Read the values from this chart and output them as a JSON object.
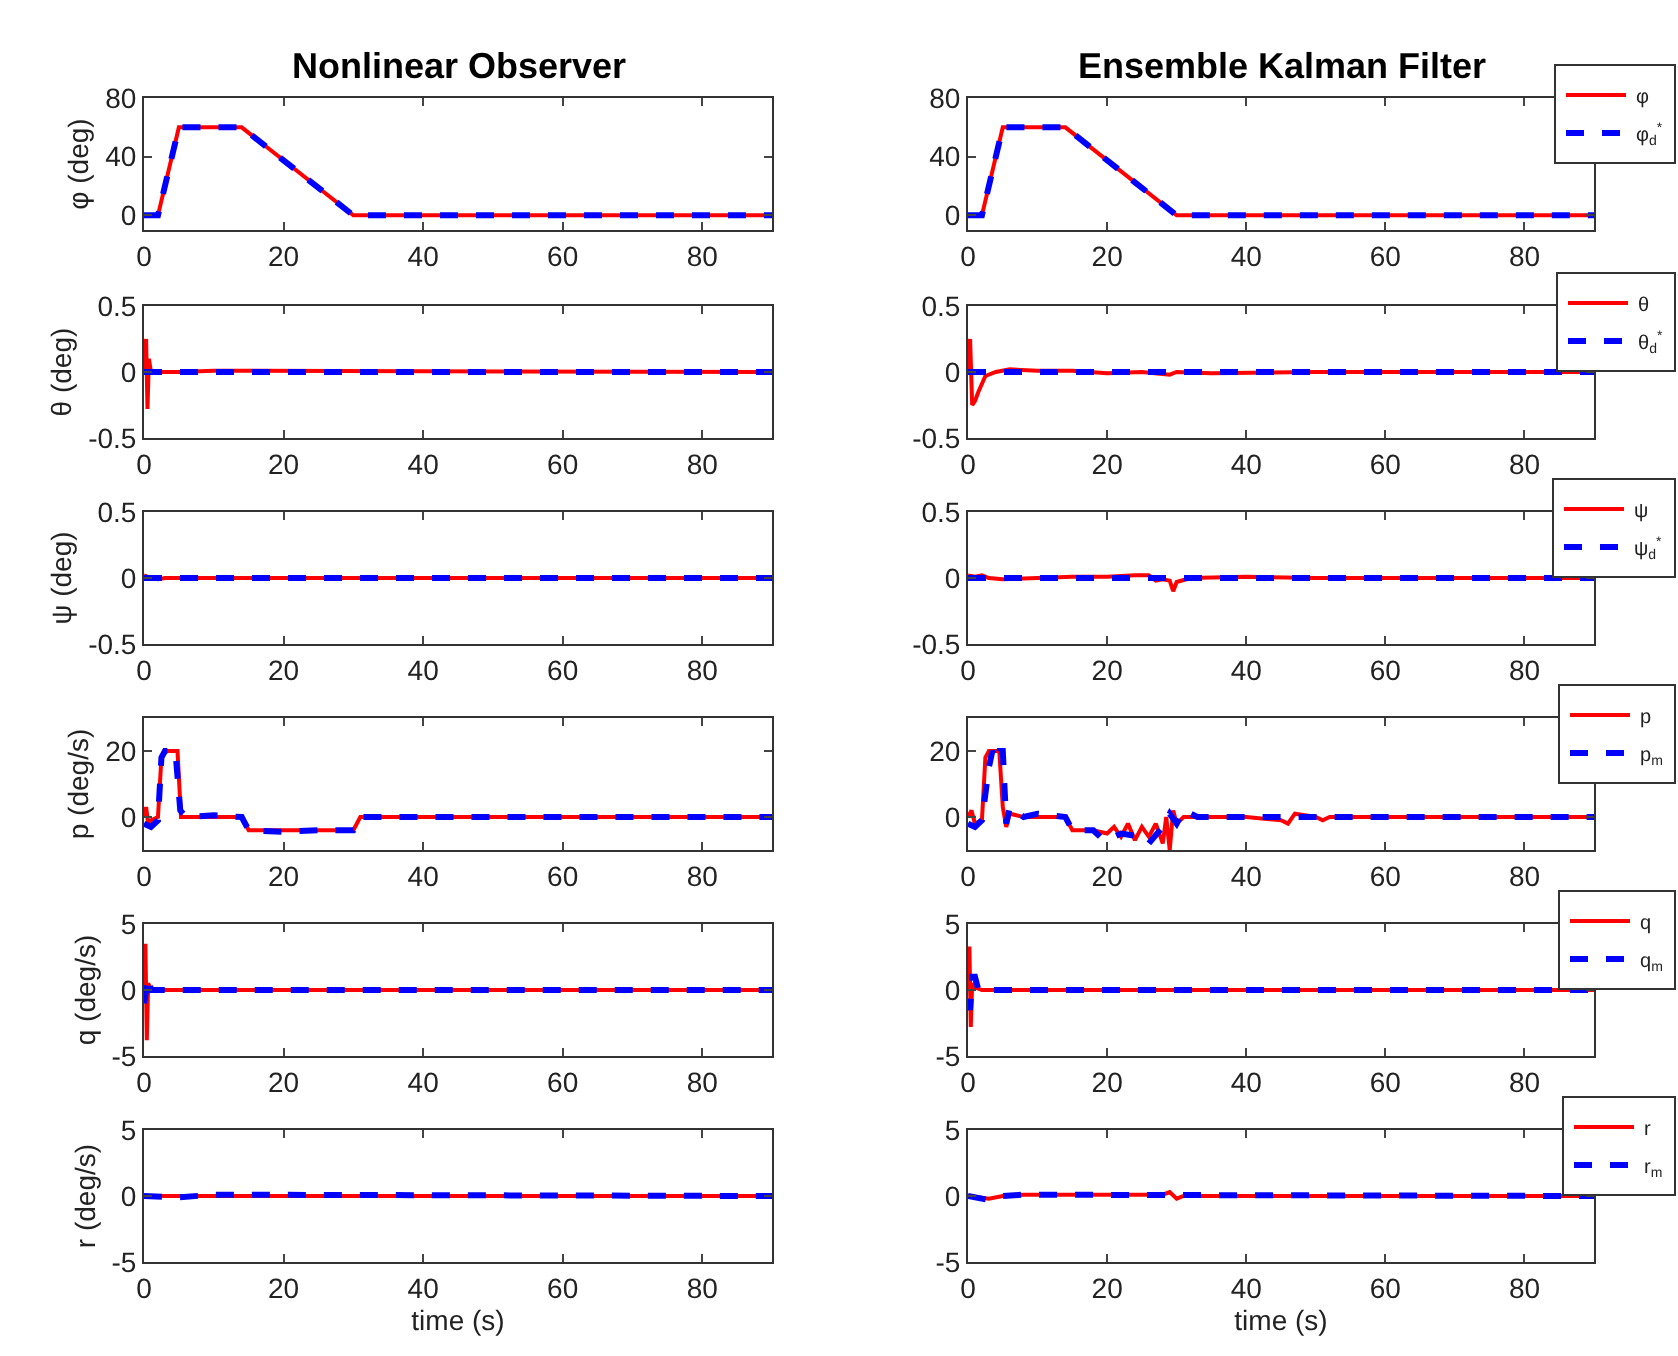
{
  "chart_data": [
    {
      "type": "line",
      "title": "Nonlinear Observer",
      "ylabel": "φ (deg)",
      "xlim": [
        0,
        90
      ],
      "xticks": [
        0,
        20,
        40,
        60,
        80
      ],
      "ylim": [
        -10,
        80
      ],
      "yticks": [
        0,
        40,
        80
      ],
      "series": [
        {
          "color": "#ff0000",
          "line_style": "solid",
          "x": [
            0,
            2,
            5,
            14,
            30,
            90
          ],
          "values": [
            0,
            0,
            60,
            60,
            0,
            0
          ]
        },
        {
          "color": "#0000ff",
          "line_style": "dashed",
          "x": [
            0,
            2,
            5,
            14,
            30,
            90
          ],
          "values": [
            0,
            0,
            60,
            60,
            0,
            0
          ]
        }
      ]
    },
    {
      "type": "line",
      "title": "Ensemble Kalman Filter",
      "xlim": [
        0,
        90
      ],
      "xticks": [
        0,
        20,
        40,
        60,
        80
      ],
      "ylim": [
        -10,
        80
      ],
      "yticks": [
        0,
        40,
        80
      ],
      "legend": "top right",
      "series": [
        {
          "name": "φ",
          "color": "#ff0000",
          "line_style": "solid",
          "x": [
            0,
            2,
            5,
            14,
            30,
            90
          ],
          "values": [
            0,
            0,
            60,
            60,
            0,
            0
          ]
        },
        {
          "name": "φ$_{d}$$^{*}$",
          "color": "#0000ff",
          "line_style": "dashed",
          "x": [
            0,
            2,
            5,
            14,
            30,
            90
          ],
          "values": [
            0,
            0,
            60,
            60,
            0,
            0
          ]
        }
      ]
    },
    {
      "type": "line",
      "ylabel": "θ (deg)",
      "xlim": [
        0,
        90
      ],
      "xticks": [
        0,
        20,
        40,
        60,
        80
      ],
      "ylim": [
        -0.5,
        0.5
      ],
      "yticks": [
        -0.5,
        0,
        0.5
      ],
      "series": [
        {
          "color": "#ff0000",
          "line_style": "solid",
          "x": [
            0,
            0.3,
            0.5,
            0.7,
            1,
            5,
            10,
            90
          ],
          "values": [
            0,
            0.25,
            -0.28,
            0.1,
            0,
            0,
            0.01,
            0
          ]
        },
        {
          "color": "#0000ff",
          "line_style": "dashed",
          "x": [
            0,
            90
          ],
          "values": [
            0,
            0
          ]
        }
      ]
    },
    {
      "type": "line",
      "xlim": [
        0,
        90
      ],
      "xticks": [
        0,
        20,
        40,
        60,
        80
      ],
      "ylim": [
        -0.5,
        0.5
      ],
      "yticks": [
        -0.5,
        0,
        0.5
      ],
      "legend": "top right",
      "series": [
        {
          "name": "θ",
          "color": "#ff0000",
          "line_style": "solid",
          "x": [
            0,
            0.3,
            0.6,
            1,
            1.5,
            2.5,
            4,
            6,
            10,
            15,
            20,
            25,
            29,
            30,
            35,
            50,
            60,
            90
          ],
          "values": [
            0,
            0.25,
            -0.25,
            -0.22,
            -0.15,
            -0.03,
            0,
            0.02,
            0.01,
            0.01,
            -0.01,
            0,
            -0.02,
            0,
            -0.01,
            0,
            0,
            0
          ]
        },
        {
          "name": "θ$_{d}$$^{*}$",
          "color": "#0000ff",
          "line_style": "dashed",
          "x": [
            0,
            90
          ],
          "values": [
            0,
            0
          ]
        }
      ]
    },
    {
      "type": "line",
      "ylabel": "ψ (deg)",
      "xlim": [
        0,
        90
      ],
      "xticks": [
        0,
        20,
        40,
        60,
        80
      ],
      "ylim": [
        -0.5,
        0.5
      ],
      "yticks": [
        -0.5,
        0,
        0.5
      ],
      "series": [
        {
          "color": "#ff0000",
          "line_style": "solid",
          "x": [
            0,
            1,
            2,
            3,
            5,
            10,
            30,
            90
          ],
          "values": [
            0.02,
            0,
            -0.01,
            0,
            0,
            0,
            0,
            0
          ]
        },
        {
          "color": "#0000ff",
          "line_style": "dashed",
          "x": [
            0,
            90
          ],
          "values": [
            0,
            0
          ]
        }
      ]
    },
    {
      "type": "line",
      "xlim": [
        0,
        90
      ],
      "xticks": [
        0,
        20,
        40,
        60,
        80
      ],
      "ylim": [
        -0.5,
        0.5
      ],
      "yticks": [
        -0.5,
        0,
        0.5
      ],
      "legend": "top right",
      "series": [
        {
          "name": "ψ",
          "color": "#ff0000",
          "line_style": "solid",
          "x": [
            0,
            1,
            2,
            3,
            5,
            10,
            15,
            20,
            24,
            26,
            27,
            28,
            29,
            29.5,
            30,
            32,
            40,
            50,
            90
          ],
          "values": [
            0.02,
            0.01,
            0.02,
            0,
            -0.01,
            0,
            0.01,
            0.01,
            0.02,
            0.02,
            -0.02,
            -0.01,
            -0.02,
            -0.1,
            -0.03,
            0,
            0.01,
            0,
            0
          ]
        },
        {
          "name": "ψ$_{d}$$^{*}$",
          "color": "#0000ff",
          "line_style": "dashed",
          "x": [
            0,
            90
          ],
          "values": [
            0,
            0
          ]
        }
      ]
    },
    {
      "type": "line",
      "ylabel": "p (deg/s)",
      "xlim": [
        0,
        90
      ],
      "xticks": [
        0,
        20,
        40,
        60,
        80
      ],
      "ylim": [
        -10,
        30
      ],
      "yticks": [
        0,
        20
      ],
      "series": [
        {
          "color": "#ff0000",
          "line_style": "solid",
          "x": [
            0,
            0.3,
            0.6,
            1,
            2,
            2.5,
            3,
            4.8,
            5.3,
            6,
            14,
            15,
            30,
            31,
            90
          ],
          "values": [
            0,
            3,
            -2,
            -1,
            0,
            18,
            20,
            20,
            0,
            0,
            0,
            -4,
            -4,
            0,
            0
          ]
        },
        {
          "color": "#0000ff",
          "line_style": "dashed",
          "x": [
            0,
            1,
            2,
            2.5,
            3,
            4.5,
            5.2,
            6,
            10,
            14,
            15,
            20,
            25,
            30,
            31,
            40,
            90
          ],
          "values": [
            -2,
            -3,
            -1,
            18,
            20,
            20,
            2,
            0,
            0.5,
            0,
            -4,
            -4.5,
            -4,
            -4,
            0,
            0,
            0
          ]
        }
      ]
    },
    {
      "type": "line",
      "xlim": [
        0,
        90
      ],
      "xticks": [
        0,
        20,
        40,
        60,
        80
      ],
      "ylim": [
        -10,
        30
      ],
      "yticks": [
        0,
        20
      ],
      "legend": "top right",
      "series": [
        {
          "name": "p",
          "color": "#ff0000",
          "line_style": "solid",
          "x": [
            0,
            0.5,
            1,
            2,
            2.5,
            3,
            4.5,
            5,
            5.5,
            6,
            8,
            10,
            14,
            15,
            18,
            20,
            21,
            22,
            23,
            24,
            25,
            26,
            27,
            28,
            28.5,
            29,
            29.5,
            30,
            31,
            35,
            40,
            45,
            46,
            47,
            50,
            51,
            52,
            90
          ],
          "values": [
            0,
            2,
            -2,
            -1,
            18,
            20,
            20,
            3,
            -3,
            1,
            0,
            0,
            0,
            -4,
            -4,
            -5,
            -3,
            -6,
            -2,
            -7,
            -3,
            -6,
            -2,
            -8,
            0,
            -10,
            2,
            -2,
            0,
            0,
            0,
            -1,
            -2,
            1,
            0,
            -1,
            0,
            0
          ]
        },
        {
          "name": "p$_{m}$",
          "color": "#0000ff",
          "line_style": "dashed",
          "x": [
            0,
            1,
            2,
            3,
            3.5,
            4,
            4.5,
            5,
            5.5,
            6,
            8,
            10,
            14,
            15,
            18,
            19,
            20,
            22,
            25,
            26,
            28,
            29,
            30,
            31,
            33,
            40,
            50,
            90
          ],
          "values": [
            -2,
            -3,
            -1,
            15,
            20,
            17,
            20,
            20,
            -2,
            3,
            0,
            1,
            0,
            -4,
            -4,
            -6,
            -7,
            -5,
            -6,
            -8,
            -3,
            1,
            -2,
            2,
            0,
            0,
            0,
            0
          ]
        }
      ]
    },
    {
      "type": "line",
      "ylabel": "q (deg/s)",
      "xlim": [
        0,
        90
      ],
      "xticks": [
        0,
        20,
        40,
        60,
        80
      ],
      "ylim": [
        -5,
        5
      ],
      "yticks": [
        -5,
        0,
        5
      ],
      "series": [
        {
          "color": "#ff0000",
          "line_style": "solid",
          "x": [
            0,
            0.2,
            0.4,
            0.6,
            1,
            2,
            90
          ],
          "values": [
            0,
            3.5,
            -3.8,
            0.5,
            0,
            0,
            0
          ]
        },
        {
          "color": "#0000ff",
          "line_style": "dashed",
          "x": [
            0,
            0.3,
            0.6,
            1,
            1.5,
            90
          ],
          "values": [
            -1,
            0,
            1,
            0,
            0,
            0
          ]
        }
      ]
    },
    {
      "type": "line",
      "xlim": [
        0,
        90
      ],
      "xticks": [
        0,
        20,
        40,
        60,
        80
      ],
      "ylim": [
        -5,
        5
      ],
      "yticks": [
        -5,
        0,
        5
      ],
      "legend": "top right",
      "series": [
        {
          "name": "q",
          "color": "#ff0000",
          "line_style": "solid",
          "x": [
            0,
            0.2,
            0.4,
            0.6,
            1,
            2,
            90
          ],
          "values": [
            0,
            3.3,
            -2.8,
            0.5,
            0.2,
            0,
            0
          ]
        },
        {
          "name": "q$_{m}$",
          "color": "#0000ff",
          "line_style": "dashed",
          "x": [
            0,
            0.3,
            0.6,
            1,
            1.5,
            90
          ],
          "values": [
            -1,
            -1.5,
            1,
            1,
            0,
            0
          ]
        }
      ]
    },
    {
      "type": "line",
      "ylabel": "r (deg/s)",
      "xlabel": "time (s)",
      "xlim": [
        0,
        90
      ],
      "xticks": [
        0,
        20,
        40,
        60,
        80
      ],
      "ylim": [
        -5,
        5
      ],
      "yticks": [
        -5,
        0,
        5
      ],
      "series": [
        {
          "color": "#ff0000",
          "line_style": "solid",
          "x": [
            0,
            90
          ],
          "values": [
            0,
            0
          ]
        },
        {
          "color": "#0000ff",
          "line_style": "dashed",
          "x": [
            0,
            5,
            10,
            90
          ],
          "values": [
            0,
            -0.1,
            0.1,
            0
          ]
        }
      ]
    },
    {
      "type": "line",
      "xlabel": "time (s)",
      "xlim": [
        0,
        90
      ],
      "xticks": [
        0,
        20,
        40,
        60,
        80
      ],
      "ylim": [
        -5,
        5
      ],
      "yticks": [
        -5,
        0,
        5
      ],
      "legend": "top right",
      "series": [
        {
          "name": "r",
          "color": "#ff0000",
          "line_style": "solid",
          "x": [
            0,
            3,
            5,
            8,
            28,
            29,
            30,
            31,
            90
          ],
          "values": [
            0,
            -0.2,
            0,
            0.1,
            0.1,
            0.3,
            -0.2,
            0,
            0
          ]
        },
        {
          "name": "r$_{m}$",
          "color": "#0000ff",
          "line_style": "dashed",
          "x": [
            0,
            3,
            5,
            8,
            90
          ],
          "values": [
            0,
            -0.3,
            0,
            0.1,
            0
          ]
        }
      ]
    }
  ]
}
